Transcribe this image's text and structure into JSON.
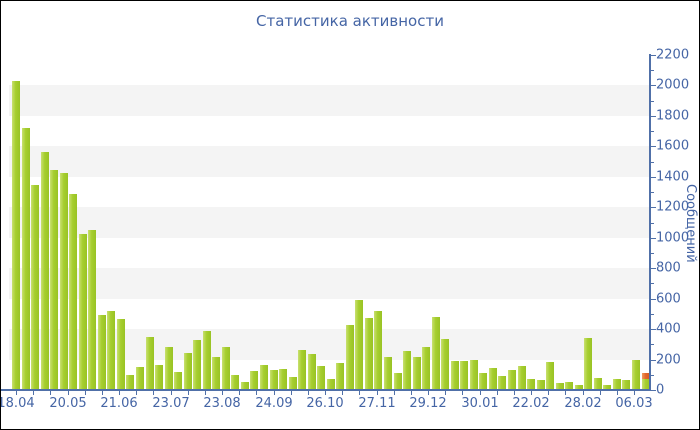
{
  "title": "Статистика активности",
  "colors": {
    "background": "#ffffff",
    "border": "#000000",
    "bar": "#a6ce2f",
    "highlight": "#e2662c",
    "axis": "#5070a8",
    "text": "#4565a5",
    "band": "#f4f4f4"
  },
  "chart_data": {
    "type": "bar",
    "title": "Статистика активности",
    "xlabel": "",
    "ylabel": "Сообщений",
    "ylim": [
      0,
      2200
    ],
    "ytick_step": 200,
    "y_tick_labels": [
      "0",
      "200",
      "400",
      "600",
      "800",
      "1000",
      "1200",
      "1400",
      "1600",
      "1800",
      "2000",
      "2200"
    ],
    "x_tick_labels": [
      "18.04",
      "20.05",
      "21.06",
      "23.07",
      "23.08",
      "24.09",
      "26.10",
      "27.11",
      "29.12",
      "30.01",
      "22.02",
      "28.02",
      "06.03"
    ],
    "grid": "alternating horizontal bands every 200 units",
    "legend_position": "none",
    "values": [
      2030,
      1720,
      1345,
      1565,
      1445,
      1425,
      1285,
      1025,
      1050,
      495,
      520,
      465,
      100,
      150,
      350,
      165,
      280,
      120,
      240,
      330,
      390,
      220,
      280,
      100,
      50,
      125,
      165,
      130,
      135,
      85,
      265,
      235,
      155,
      75,
      180,
      430,
      590,
      470,
      520,
      215,
      115,
      255,
      215,
      280,
      480,
      335,
      190,
      190,
      195,
      115,
      145,
      90,
      130,
      160,
      75,
      65,
      185,
      45,
      50,
      35,
      340,
      80,
      35,
      70,
      65,
      195,
      115
    ],
    "highlight_segment": {
      "bar_index": 66,
      "value_from": 75,
      "value_to": 115,
      "color": "#e2662c"
    }
  }
}
